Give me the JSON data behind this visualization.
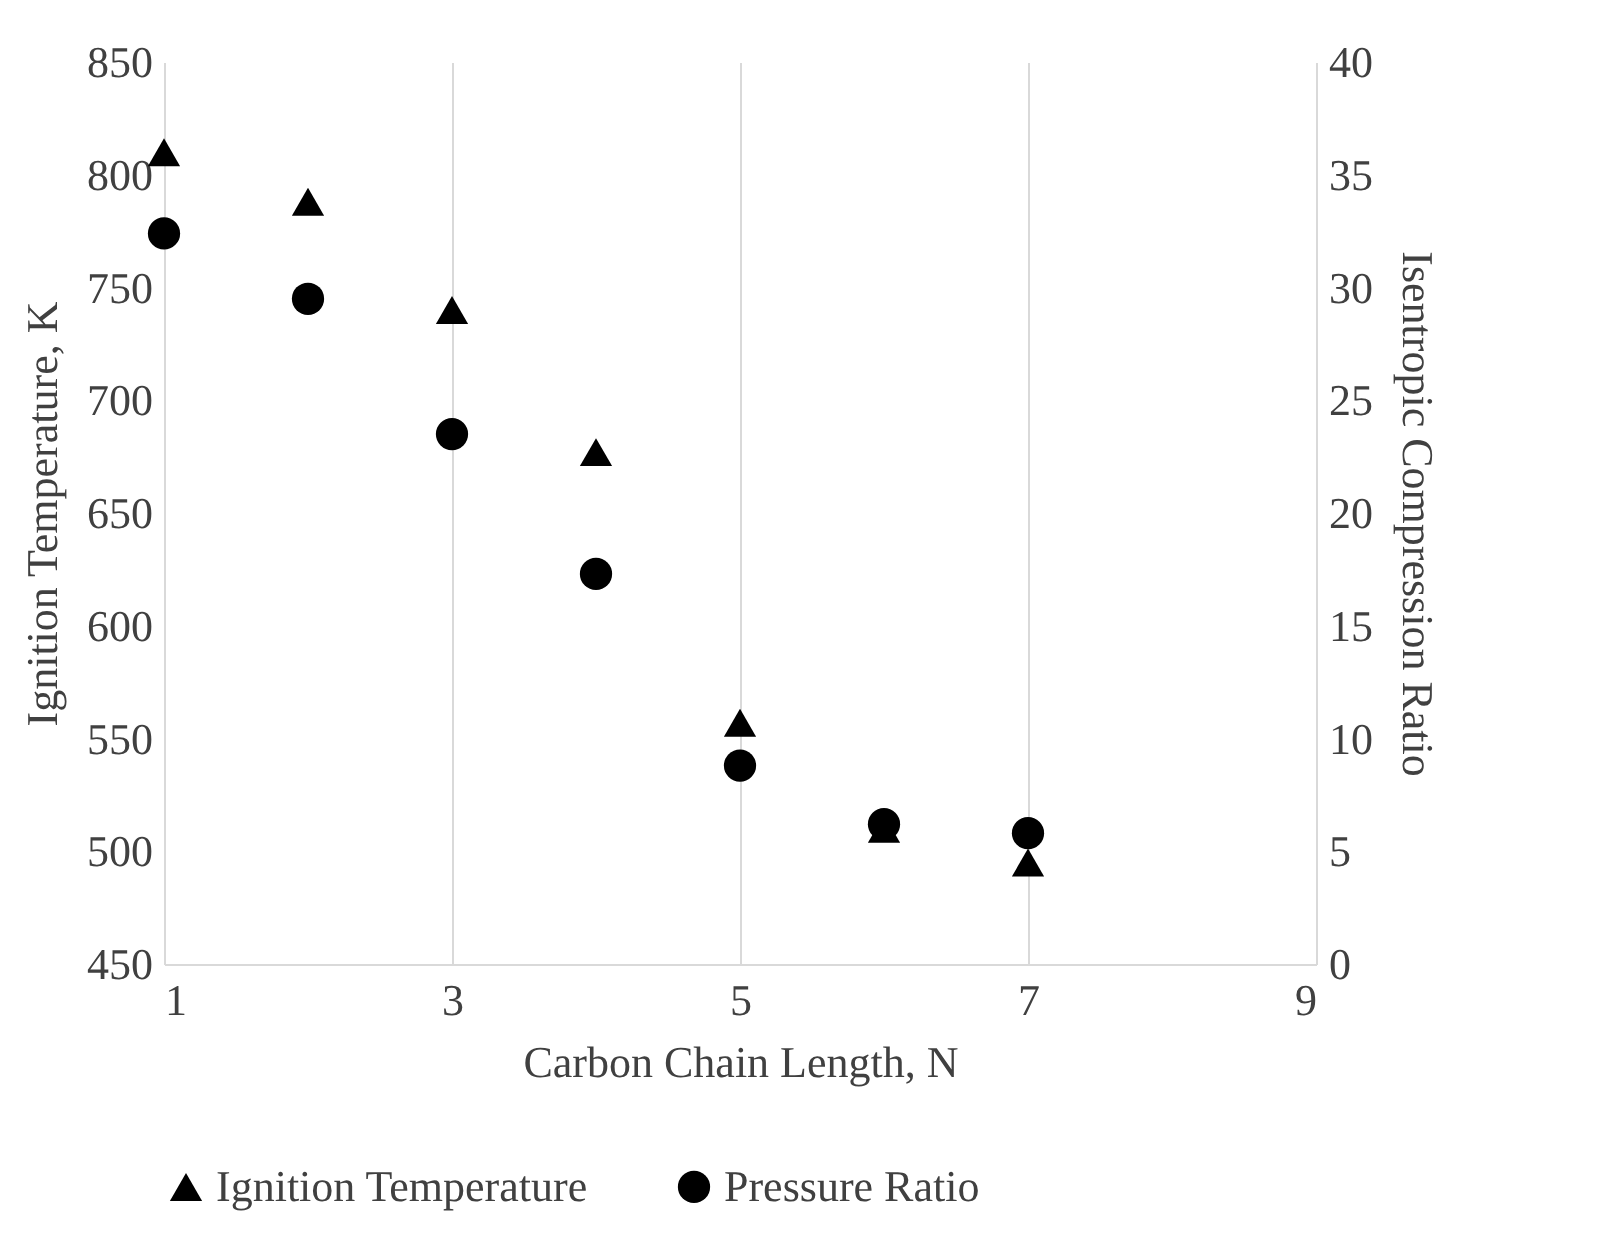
{
  "chart_data": {
    "type": "scatter",
    "xlabel": "Carbon Chain Length, N",
    "ylabel": "Ignition Temperature, K",
    "y2label": "Isentropic Compression Ratio",
    "x": [
      1,
      2,
      3,
      4,
      5,
      6,
      7
    ],
    "series": [
      {
        "name": "Ignition Temperature",
        "color": "#000000",
        "marker": "triangle",
        "values": [
          810,
          788,
          740,
          677,
          557,
          510,
          495
        ]
      },
      {
        "name": "Pressure Ratio",
        "color": "#000000",
        "marker": "circle",
        "axis": "y2",
        "values": [
          32.4,
          29.5,
          23.5,
          17.3,
          8.8,
          6.2,
          5.8
        ]
      }
    ],
    "xlim": [
      1,
      9
    ],
    "xticks": [
      1,
      3,
      5,
      7,
      9
    ],
    "ylim": [
      450,
      850
    ],
    "yticks": [
      450,
      500,
      550,
      600,
      650,
      700,
      750,
      800,
      850
    ],
    "y2lim": [
      0,
      40
    ],
    "y2ticks": [
      0,
      5,
      10,
      15,
      20,
      25,
      30,
      35,
      40
    ],
    "grid": "x",
    "legend": "bottom"
  }
}
